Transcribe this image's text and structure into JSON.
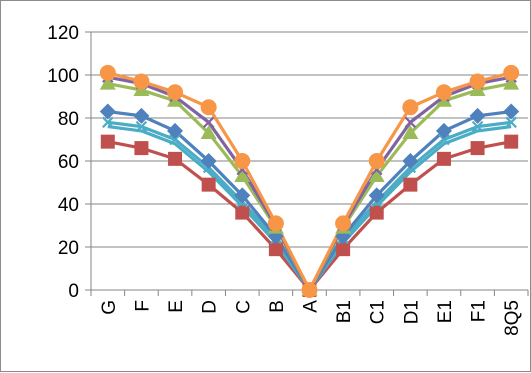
{
  "chart_data": {
    "type": "line",
    "title": "",
    "xlabel": "",
    "ylabel": "",
    "categories": [
      "G",
      "F",
      "E",
      "D",
      "C",
      "B",
      "A",
      "B1",
      "C1",
      "D1",
      "E1",
      "F1",
      "8Q5"
    ],
    "ylim": [
      0,
      120
    ],
    "yticks": [
      0,
      20,
      40,
      60,
      80,
      100,
      120
    ],
    "grid": "horizontal",
    "legend": "none",
    "series": [
      {
        "values": [
          69,
          66,
          61,
          49,
          36,
          19,
          0,
          19,
          36,
          49,
          61,
          66,
          69
        ],
        "color": "#C0504D",
        "marker": "square"
      },
      {
        "values": [
          76,
          74,
          68,
          55,
          39,
          22,
          0,
          22,
          39,
          55,
          68,
          74,
          76
        ],
        "color": "#4BACC6",
        "marker": "none"
      },
      {
        "values": [
          78,
          76,
          70,
          57,
          41,
          24,
          0,
          24,
          41,
          57,
          70,
          76,
          78
        ],
        "color": "#4BACC6",
        "marker": "x"
      },
      {
        "values": [
          83,
          81,
          74,
          60,
          44,
          25,
          0,
          25,
          44,
          60,
          74,
          81,
          83
        ],
        "color": "#4F81BD",
        "marker": "diamond"
      },
      {
        "values": [
          96,
          93,
          88,
          73,
          53,
          29,
          0,
          29,
          53,
          73,
          88,
          93,
          96
        ],
        "color": "#9BBB59",
        "marker": "triangle"
      },
      {
        "values": [
          99,
          96,
          90,
          78,
          56,
          30,
          0,
          30,
          56,
          78,
          90,
          96,
          99
        ],
        "color": "#8064A2",
        "marker": "x"
      },
      {
        "values": [
          101,
          97,
          92,
          85,
          60,
          31,
          0,
          31,
          60,
          85,
          92,
          97,
          101
        ],
        "color": "#F79646",
        "marker": "circle"
      }
    ]
  }
}
